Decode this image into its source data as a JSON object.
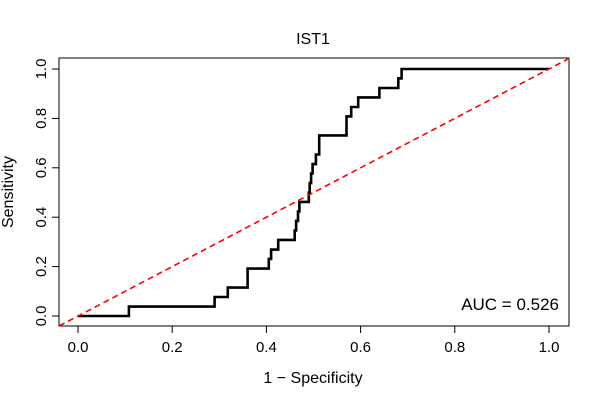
{
  "chart_data": {
    "type": "line",
    "title": "IST1",
    "xlabel": "1 − Specificity",
    "ylabel": "Sensitivity",
    "xlim": [
      0,
      1
    ],
    "ylim": [
      0,
      1
    ],
    "x_ticks": [
      "0.0",
      "0.2",
      "0.4",
      "0.6",
      "0.8",
      "1.0"
    ],
    "y_ticks": [
      "0.0",
      "0.2",
      "0.4",
      "0.6",
      "0.8",
      "1.0"
    ],
    "grid": false,
    "annotation": "AUC = 0.526",
    "series": [
      {
        "kind": "roc-step",
        "color": "#000000",
        "points": [
          [
            0.0,
            0.0
          ],
          [
            0.108,
            0.0
          ],
          [
            0.108,
            0.038
          ],
          [
            0.29,
            0.038
          ],
          [
            0.29,
            0.077
          ],
          [
            0.318,
            0.077
          ],
          [
            0.318,
            0.115
          ],
          [
            0.36,
            0.115
          ],
          [
            0.36,
            0.192
          ],
          [
            0.405,
            0.192
          ],
          [
            0.405,
            0.231
          ],
          [
            0.41,
            0.231
          ],
          [
            0.41,
            0.269
          ],
          [
            0.425,
            0.269
          ],
          [
            0.425,
            0.308
          ],
          [
            0.46,
            0.308
          ],
          [
            0.46,
            0.346
          ],
          [
            0.463,
            0.346
          ],
          [
            0.463,
            0.385
          ],
          [
            0.467,
            0.385
          ],
          [
            0.467,
            0.423
          ],
          [
            0.47,
            0.423
          ],
          [
            0.47,
            0.462
          ],
          [
            0.49,
            0.462
          ],
          [
            0.49,
            0.5
          ],
          [
            0.492,
            0.5
          ],
          [
            0.492,
            0.538
          ],
          [
            0.495,
            0.538
          ],
          [
            0.495,
            0.577
          ],
          [
            0.498,
            0.577
          ],
          [
            0.498,
            0.615
          ],
          [
            0.505,
            0.615
          ],
          [
            0.505,
            0.654
          ],
          [
            0.512,
            0.654
          ],
          [
            0.512,
            0.731
          ],
          [
            0.57,
            0.731
          ],
          [
            0.57,
            0.808
          ],
          [
            0.58,
            0.808
          ],
          [
            0.58,
            0.846
          ],
          [
            0.595,
            0.846
          ],
          [
            0.595,
            0.885
          ],
          [
            0.64,
            0.885
          ],
          [
            0.64,
            0.923
          ],
          [
            0.68,
            0.923
          ],
          [
            0.68,
            0.962
          ],
          [
            0.687,
            0.962
          ],
          [
            0.687,
            1.0
          ],
          [
            1.0,
            1.0
          ]
        ]
      },
      {
        "kind": "diagonal-reference",
        "color": "#ff0000",
        "dashed": true,
        "points": [
          [
            -0.04,
            -0.04
          ],
          [
            1.04,
            1.04
          ]
        ]
      }
    ]
  }
}
